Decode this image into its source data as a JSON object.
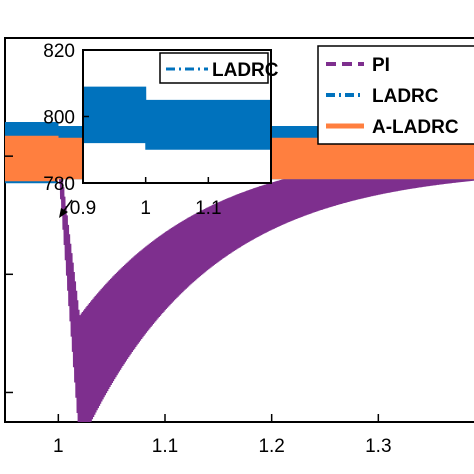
{
  "colors": {
    "pi": "#7E2F8E",
    "ladrc": "#0072BD",
    "aladrc": "#FF7F3F",
    "axis": "#000000"
  },
  "chart_data": [
    {
      "type": "line",
      "xlim": [
        0.95,
        1.4
      ],
      "ylim": [
        755,
        820
      ],
      "x_ticks": [
        1,
        1.1,
        1.2,
        1.3
      ],
      "x_tick_labels": [
        "1",
        "1.1",
        "1.2",
        "1.3"
      ],
      "grid": false,
      "legend": {
        "placement": "top-right",
        "entries": [
          "PI",
          "LADRC",
          "A-LADRC"
        ]
      },
      "disturbance_time": 1.0,
      "series": [
        {
          "name": "PI",
          "style": "dashed",
          "color": "#7E2F8E",
          "baseline": 800,
          "ripple": 2.5,
          "dip_min": 762,
          "dip_time": 1.02,
          "recovery_tau": 0.12
        },
        {
          "name": "LADRC",
          "style": "dash-dot",
          "color": "#0072BD",
          "baseline": 800,
          "ripple": 4.5
        },
        {
          "name": "A-LADRC",
          "style": "solid",
          "color": "#FF7F3F",
          "baseline": 800,
          "ripple": 3.5
        }
      ]
    },
    {
      "type": "line",
      "inset": true,
      "xlim": [
        0.9,
        1.2
      ],
      "ylim": [
        780,
        820
      ],
      "x_ticks": [
        0.9,
        1,
        1.1
      ],
      "x_tick_labels": [
        "0.9",
        "1",
        "1.1"
      ],
      "y_ticks": [
        780,
        800,
        820
      ],
      "y_tick_labels": [
        "780",
        "800",
        "820"
      ],
      "legend": {
        "placement": "top-right",
        "entries": [
          "LADRC"
        ]
      },
      "series": [
        {
          "name": "LADRC",
          "style": "dash-dot",
          "color": "#0072BD",
          "before_band": [
            792,
            809
          ],
          "after_band": [
            790,
            805
          ],
          "step_time": 1.0
        }
      ]
    }
  ]
}
